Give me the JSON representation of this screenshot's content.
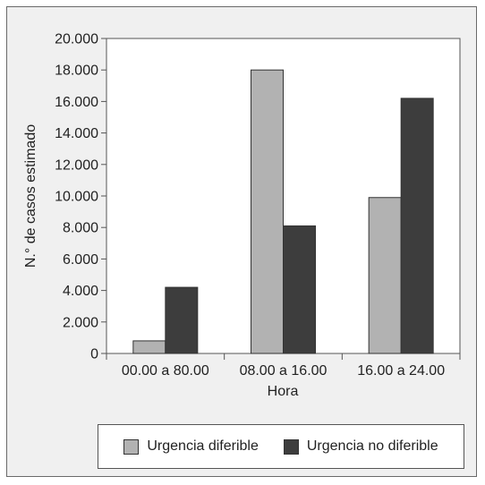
{
  "chart_data": {
    "type": "bar",
    "categories": [
      "00.00 a 80.00",
      "08.00 a 16.00",
      "16.00 a 24.00"
    ],
    "series": [
      {
        "name": "Urgencia diferible",
        "values": [
          800,
          18000,
          9900
        ],
        "color": "#b2b2b2"
      },
      {
        "name": "Urgencia no diferible",
        "values": [
          4200,
          8100,
          16200
        ],
        "color": "#3d3d3d"
      }
    ],
    "title": "",
    "xlabel": "Hora",
    "ylabel": "N.° de casos estimado",
    "ylim": [
      0,
      20000
    ],
    "yticks": [
      "0",
      "2.000",
      "4.000",
      "6.000",
      "8.000",
      "10.000",
      "12.000",
      "14.000",
      "16.000",
      "18.000",
      "20.000"
    ],
    "grid": false,
    "legend_position": "bottom"
  }
}
